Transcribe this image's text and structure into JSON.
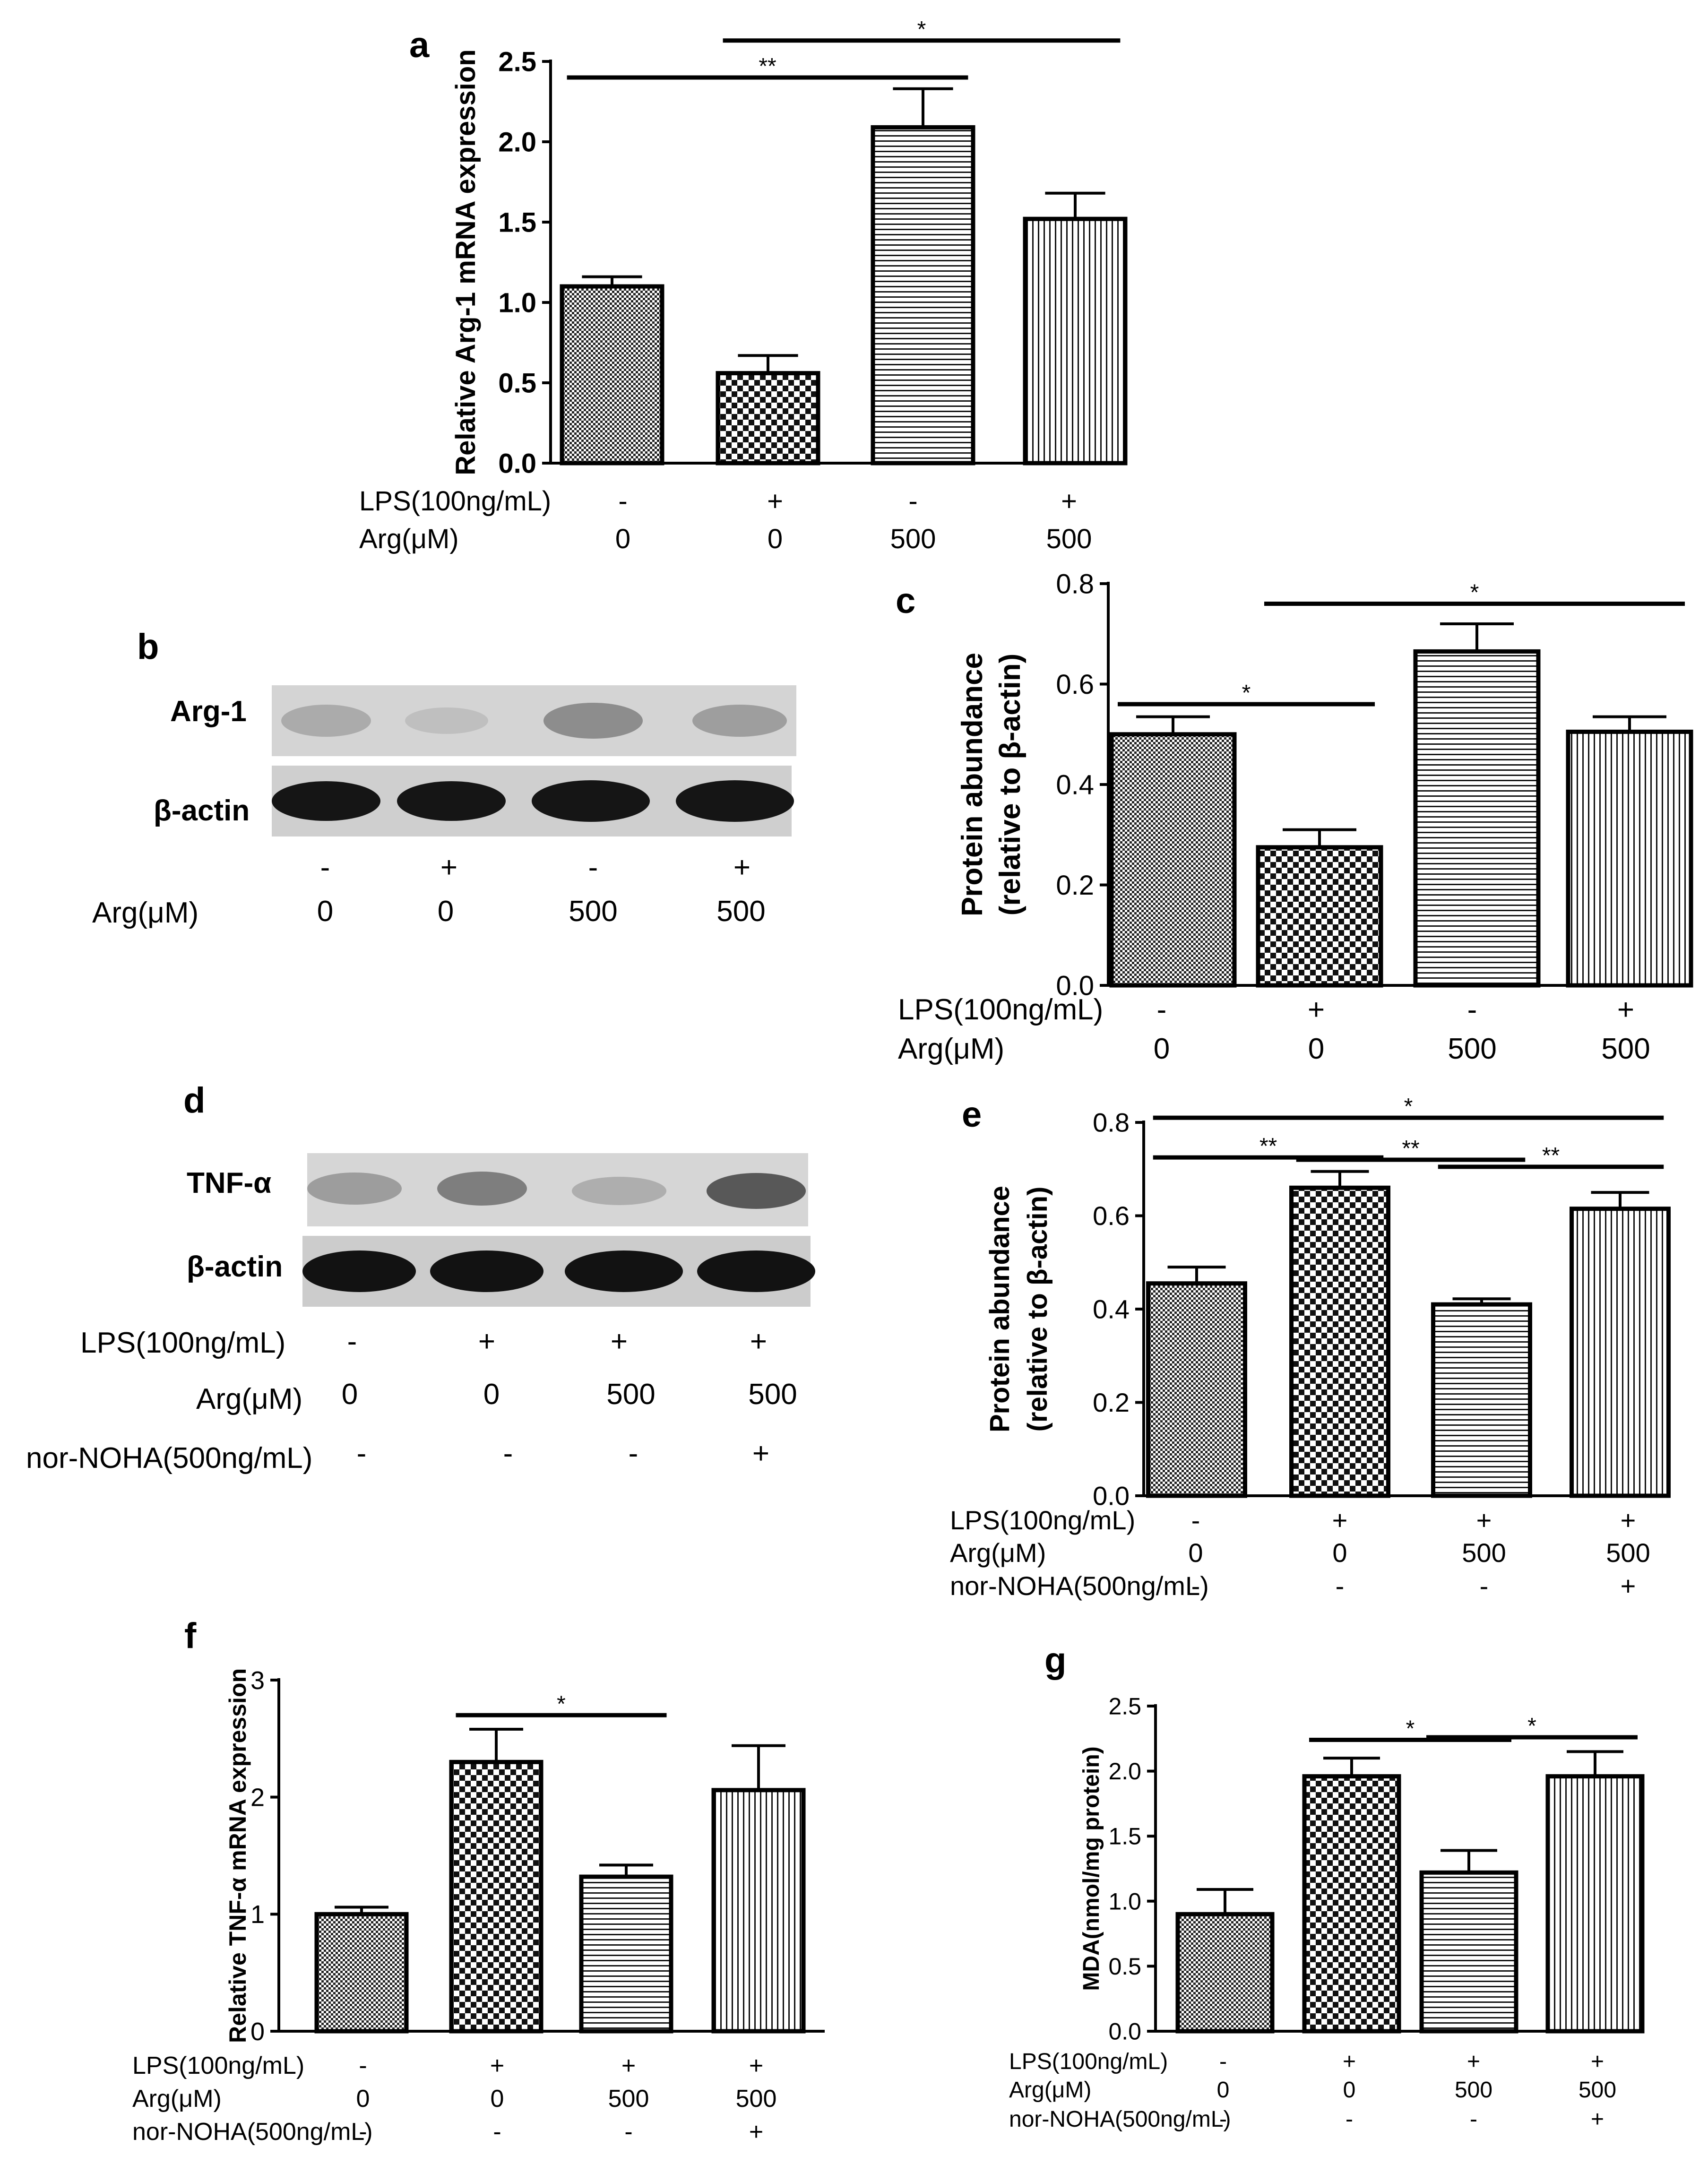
{
  "panels": {
    "a": "a",
    "b": "b",
    "c": "c",
    "d": "d",
    "e": "e",
    "f": "f",
    "g": "g"
  },
  "blot_b": {
    "bands": [
      "Arg-1",
      "β-actin"
    ],
    "lps": [
      "-",
      "+",
      "-",
      "+"
    ],
    "arg_label": "Arg(μM)",
    "arg": [
      "0",
      "0",
      "500",
      "500"
    ]
  },
  "blot_d": {
    "bands": [
      "TNF-α",
      "β-actin"
    ],
    "lps_label": "LPS(100ng/mL)",
    "lps": [
      "-",
      "+",
      "+",
      "+"
    ],
    "arg_label": "Arg(μM)",
    "arg": [
      "0",
      "0",
      "500",
      "500"
    ],
    "nor_label": "nor-NOHA(500ng/mL)",
    "nor": [
      "-",
      "-",
      "-",
      "+"
    ]
  },
  "colors": {
    "ink": "#000000",
    "band": "#1a1a1a",
    "blot_bg": "#d9d9d9"
  },
  "chart_data": [
    {
      "id": "a",
      "type": "bar",
      "ylabel": "Relative Arg-1 mRNA expression",
      "ylim": [
        0,
        2.5
      ],
      "yticks": [
        "0.0",
        "0.5",
        "1.0",
        "1.5",
        "2.0",
        "2.5"
      ],
      "values": [
        1.1,
        0.56,
        2.09,
        1.52
      ],
      "errors": [
        0.06,
        0.11,
        0.24,
        0.16
      ],
      "patterns": [
        "fine",
        "check",
        "hstripe",
        "vstripe"
      ],
      "conditions": [
        {
          "label": "LPS(100ng/mL)",
          "values": [
            "-",
            "+",
            "-",
            "+"
          ]
        },
        {
          "label": "Arg(μM)",
          "values": [
            "0",
            "0",
            "500",
            "500"
          ]
        }
      ],
      "significance": [
        {
          "from": 0,
          "to": 2,
          "y": 2.4,
          "label": "**"
        },
        {
          "from": 1,
          "to": 3,
          "y": 2.63,
          "label": "*"
        }
      ]
    },
    {
      "id": "c",
      "type": "bar",
      "ylabel": [
        "Protein abundance",
        "(relative to β-actin)"
      ],
      "ylim": [
        0,
        0.8
      ],
      "yticks": [
        "0.0",
        "0.2",
        "0.4",
        "0.6",
        "0.8"
      ],
      "values": [
        0.5,
        0.275,
        0.665,
        0.505
      ],
      "errors": [
        0.035,
        0.035,
        0.055,
        0.03
      ],
      "patterns": [
        "fine",
        "check",
        "hstripe",
        "vstripe"
      ],
      "conditions": [
        {
          "label": "LPS(100ng/mL)",
          "values": [
            "-",
            "+",
            "-",
            "+"
          ]
        },
        {
          "label": "Arg(μM)",
          "values": [
            "0",
            "0",
            "500",
            "500"
          ]
        }
      ],
      "significance": [
        {
          "from": 0,
          "to": 1,
          "y": 0.56,
          "label": "*"
        },
        {
          "from": 1,
          "to": 3,
          "y": 0.76,
          "label": "*"
        }
      ]
    },
    {
      "id": "e",
      "type": "bar",
      "ylabel": [
        "Protein abundance",
        "(relative to β-actin)"
      ],
      "ylim": [
        0,
        0.8
      ],
      "yticks": [
        "0.0",
        "0.2",
        "0.4",
        "0.6",
        "0.8"
      ],
      "values": [
        0.455,
        0.66,
        0.41,
        0.615
      ],
      "errors": [
        0.035,
        0.035,
        0.012,
        0.035
      ],
      "patterns": [
        "fine",
        "check",
        "hstripe",
        "vstripe"
      ],
      "conditions": [
        {
          "label": "LPS(100ng/mL)",
          "values": [
            "-",
            "+",
            "+",
            "+"
          ]
        },
        {
          "label": "Arg(μM)",
          "values": [
            "0",
            "0",
            "500",
            "500"
          ]
        },
        {
          "label": "nor-NOHA(500ng/mL)",
          "values": [
            "-",
            "-",
            "-",
            "+"
          ]
        }
      ],
      "significance": [
        {
          "from": 0,
          "to": 1,
          "y": 0.725,
          "label": "**"
        },
        {
          "from": 1,
          "to": 2,
          "y": 0.72,
          "label": "**"
        },
        {
          "from": 2,
          "to": 3,
          "y": 0.705,
          "label": "**"
        },
        {
          "from": 0,
          "to": 3,
          "y": 0.81,
          "label": "*"
        }
      ]
    },
    {
      "id": "f",
      "type": "bar",
      "ylabel": "Relative TNF-α mRNA expression",
      "ylim": [
        0,
        3
      ],
      "yticks": [
        "0",
        "1",
        "2",
        "3"
      ],
      "values": [
        1.0,
        2.3,
        1.32,
        2.06
      ],
      "errors": [
        0.06,
        0.28,
        0.1,
        0.38
      ],
      "patterns": [
        "fine",
        "check",
        "hstripe",
        "vstripe"
      ],
      "conditions": [
        {
          "label": "LPS(100ng/mL)",
          "values": [
            "-",
            "+",
            "+",
            "+"
          ]
        },
        {
          "label": "Arg(μM)",
          "values": [
            "0",
            "0",
            "500",
            "500"
          ]
        },
        {
          "label": "nor-NOHA(500ng/mL)",
          "values": [
            "-",
            "-",
            "-",
            "+"
          ]
        }
      ],
      "significance": [
        {
          "from": 1,
          "to": 2,
          "y": 2.7,
          "label": "*"
        }
      ]
    },
    {
      "id": "g",
      "type": "bar",
      "ylabel": "MDA(nmol/mg protein)",
      "ylim": [
        0,
        2.5
      ],
      "yticks": [
        "0.0",
        "0.5",
        "1.0",
        "1.5",
        "2.0",
        "2.5"
      ],
      "values": [
        0.9,
        1.96,
        1.22,
        1.96
      ],
      "errors": [
        0.19,
        0.14,
        0.17,
        0.19
      ],
      "patterns": [
        "fine",
        "check",
        "hstripe",
        "vstripe"
      ],
      "conditions": [
        {
          "label": "LPS(100ng/mL)",
          "values": [
            "-",
            "+",
            "+",
            "+"
          ]
        },
        {
          "label": "Arg(μM)",
          "values": [
            "0",
            "0",
            "500",
            "500"
          ]
        },
        {
          "label": "nor-NOHA(500ng/mL)",
          "values": [
            "-",
            "-",
            "-",
            "+"
          ]
        }
      ],
      "significance": [
        {
          "from": 1,
          "to": 2,
          "y": 2.24,
          "label": "*"
        },
        {
          "from": 2,
          "to": 3,
          "y": 2.26,
          "label": "*"
        }
      ]
    }
  ]
}
